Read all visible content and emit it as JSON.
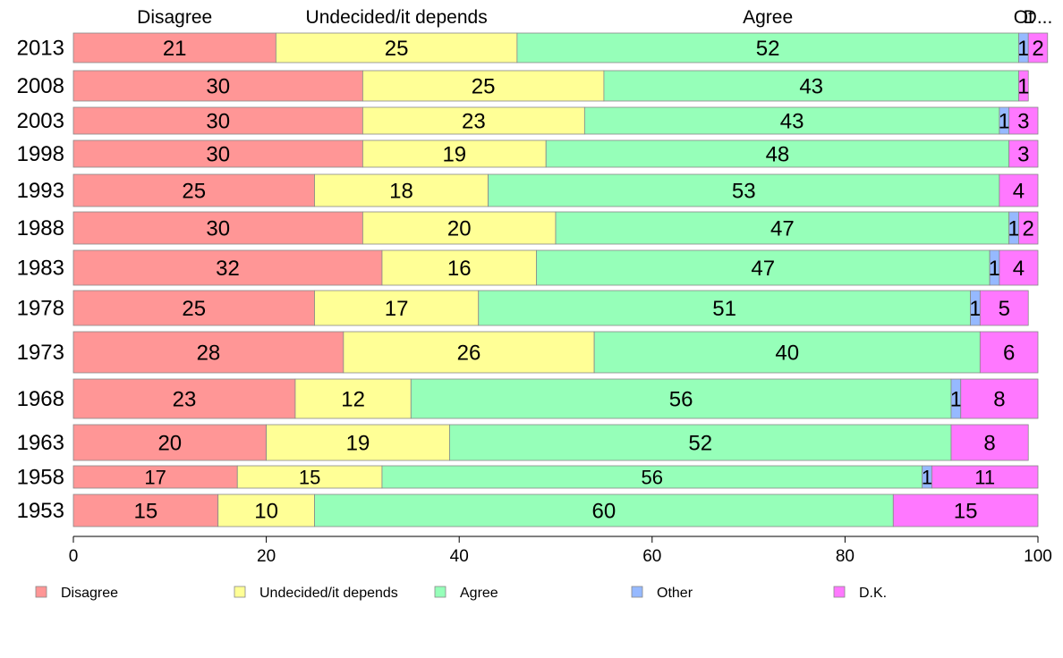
{
  "chart_data": {
    "type": "bar",
    "orientation": "horizontal",
    "stacked": true,
    "categories": [
      "2013",
      "2008",
      "2003",
      "1998",
      "1993",
      "1988",
      "1983",
      "1978",
      "1973",
      "1968",
      "1963",
      "1958",
      "1953"
    ],
    "series": [
      {
        "name": "Disagree",
        "color": "#FF9696",
        "values": [
          21,
          30,
          30,
          30,
          25,
          30,
          32,
          25,
          28,
          23,
          20,
          17,
          15
        ]
      },
      {
        "name": "Undecided/it depends",
        "color": "#FFFF96",
        "values": [
          25,
          25,
          23,
          19,
          18,
          20,
          16,
          17,
          26,
          12,
          19,
          15,
          10
        ]
      },
      {
        "name": "Agree",
        "color": "#96FFB9",
        "values": [
          52,
          43,
          43,
          48,
          53,
          47,
          47,
          51,
          40,
          56,
          52,
          56,
          60
        ]
      },
      {
        "name": "Other",
        "color": "#96B9FF",
        "values": [
          1,
          0,
          1,
          0,
          0,
          1,
          1,
          1,
          0,
          1,
          0,
          1,
          0
        ]
      },
      {
        "name": "D.K.",
        "color": "#FF78FF",
        "values": [
          2,
          1,
          3,
          3,
          4,
          2,
          4,
          5,
          6,
          8,
          8,
          11,
          15
        ]
      }
    ],
    "top_labels": [
      "Disagree",
      "Undecided/it depends",
      "Agree",
      "Ot",
      "D..."
    ],
    "xticks": [
      0,
      20,
      40,
      60,
      80,
      100
    ],
    "xlim": [
      0,
      100
    ],
    "legend_position": "bottom",
    "grid": false
  }
}
